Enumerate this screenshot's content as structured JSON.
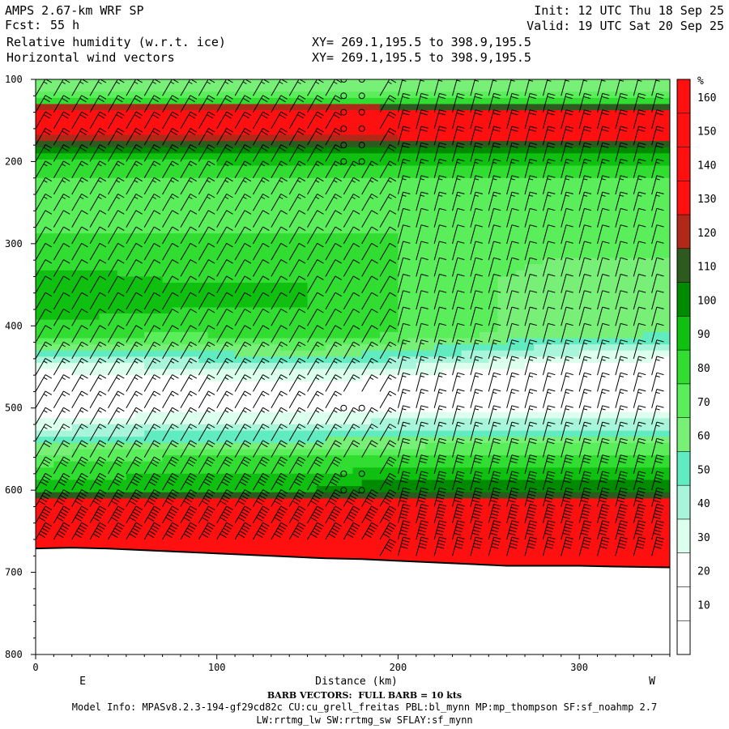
{
  "header": {
    "model": "AMPS 2.67-km WRF SP",
    "fcst_label": "Fcst:",
    "fcst_value": "55 h",
    "field1": "Relative humidity (w.r.t. ice)",
    "field2": "Horizontal wind vectors",
    "xy1": "XY= 269.1,195.5 to 398.9,195.5",
    "xy2": "XY= 269.1,195.5 to 398.9,195.5",
    "init": "Init: 12 UTC Thu 18 Sep 25",
    "valid": "Valid: 19 UTC Sat 20 Sep 25"
  },
  "footer": {
    "barb_note": "BARB VECTORS:  FULL BARB = 10 kts",
    "model_info": "Model Info: MPASv8.2.3-194-gf29cd82c CU:cu_grell_freitas PBL:bl_mynn MP:mp_thompson SF:sf_noahmp 2.7",
    "model_info2": "LW:rrtmg_lw SW:rrtmg_sw SFLAY:sf_mynn"
  },
  "chart_data": {
    "type": "heatmap",
    "title": "Relative humidity (w.r.t. ice)",
    "overlay": "Horizontal wind vectors",
    "xlabel": "Distance (km)",
    "ylabel": "",
    "xlim": [
      0,
      350
    ],
    "ylim": [
      800,
      100
    ],
    "x_ticks": [
      "0",
      "100",
      "200",
      "300"
    ],
    "x_tick_values": [
      0,
      100,
      200,
      300
    ],
    "y_ticks": [
      "100",
      "200",
      "300",
      "400",
      "500",
      "600",
      "700",
      "800"
    ],
    "y_tick_values": [
      100,
      200,
      300,
      400,
      500,
      600,
      700,
      800
    ],
    "left_end_label": "E",
    "right_end_label": "W",
    "colorbar_unit": "%",
    "colorbar_labels": [
      "10",
      "20",
      "30",
      "40",
      "50",
      "60",
      "70",
      "80",
      "90",
      "100",
      "110",
      "120",
      "130",
      "140",
      "150",
      "160"
    ],
    "colorbar_levels": [
      0,
      10,
      20,
      30,
      40,
      50,
      60,
      70,
      80,
      90,
      100,
      110,
      120,
      130,
      140,
      150,
      160,
      170
    ],
    "colorbar_colors": [
      "#ffffff",
      "#ffffff",
      "#ffffff",
      "#dcffee",
      "#a8f5dc",
      "#60ecc0",
      "#78f078",
      "#5aee5a",
      "#30dd30",
      "#10c010",
      "#008a00",
      "#2d5a1f",
      "#b02818",
      "#ff1010",
      "#ff1010",
      "#ff1010",
      "#ff1010"
    ],
    "surface_pressure": {
      "x": [
        0,
        20,
        40,
        60,
        80,
        100,
        120,
        140,
        160,
        180,
        200,
        220,
        240,
        260,
        280,
        300,
        320,
        350
      ],
      "p": [
        671,
        670,
        671,
        673,
        675,
        677,
        679,
        681,
        683,
        684,
        686,
        688,
        690,
        692,
        692,
        692,
        693,
        694
      ]
    },
    "rh_profiles": {
      "pressure_levels": [
        100,
        125,
        140,
        165,
        190,
        210,
        230,
        260,
        290,
        320,
        350,
        380,
        410,
        440,
        460,
        480,
        500,
        520,
        540,
        560,
        580,
        600,
        620,
        640,
        660,
        680,
        700
      ],
      "x": [
        0,
        80,
        150,
        200,
        280,
        350
      ],
      "rh": [
        [
          60,
          75,
          160,
          130,
          95,
          85,
          75,
          70,
          80,
          85,
          100,
          95,
          85,
          45,
          25,
          25,
          20,
          35,
          55,
          75,
          85,
          95,
          150,
          150,
          150,
          150,
          150
        ],
        [
          60,
          75,
          160,
          130,
          95,
          85,
          75,
          70,
          80,
          85,
          90,
          90,
          80,
          50,
          30,
          25,
          25,
          40,
          60,
          80,
          90,
          100,
          150,
          150,
          150,
          150,
          150
        ],
        [
          60,
          75,
          160,
          130,
          100,
          85,
          75,
          75,
          80,
          85,
          90,
          90,
          85,
          60,
          35,
          25,
          25,
          40,
          60,
          80,
          90,
          100,
          150,
          150,
          150,
          150,
          150
        ],
        [
          60,
          75,
          150,
          140,
          100,
          85,
          75,
          75,
          80,
          80,
          80,
          80,
          80,
          50,
          30,
          20,
          25,
          45,
          65,
          80,
          95,
          110,
          140,
          150,
          150,
          150,
          150
        ],
        [
          60,
          75,
          150,
          140,
          100,
          85,
          75,
          70,
          75,
          70,
          65,
          65,
          65,
          35,
          20,
          20,
          25,
          45,
          65,
          85,
          95,
          110,
          140,
          150,
          150,
          150,
          150
        ],
        [
          60,
          75,
          150,
          140,
          100,
          85,
          75,
          70,
          75,
          70,
          60,
          60,
          60,
          30,
          20,
          20,
          25,
          45,
          65,
          85,
          95,
          110,
          140,
          150,
          150,
          150,
          150
        ]
      ]
    },
    "wind_barbs": {
      "note": "Barbs on a regular grid; speed in kts, direction in degrees (meteorological)",
      "x_step_km": 10,
      "p_levels": [
        100,
        120,
        140,
        160,
        180,
        200,
        220,
        240,
        260,
        280,
        300,
        320,
        340,
        360,
        380,
        400,
        420,
        440,
        460,
        480,
        500,
        520,
        540,
        560,
        580,
        600,
        620,
        640,
        660,
        680
      ],
      "speed_by_level_kts": [
        10,
        15,
        20,
        20,
        20,
        20,
        15,
        15,
        15,
        10,
        10,
        10,
        10,
        10,
        10,
        10,
        10,
        15,
        15,
        15,
        15,
        15,
        15,
        20,
        30,
        40,
        50,
        50,
        50,
        40
      ]
    }
  }
}
